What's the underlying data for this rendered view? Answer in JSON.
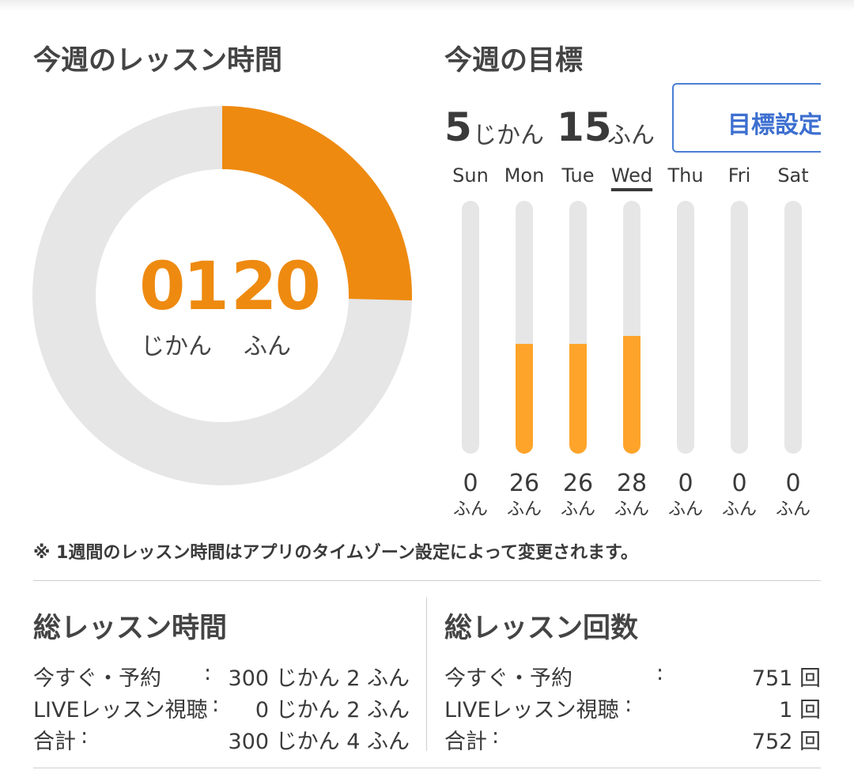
{
  "weekly": {
    "title": "今週のレッスン時間",
    "hours": "01",
    "minutes": "20",
    "hours_unit": "じかん",
    "minutes_unit": "ふん",
    "progress_fraction": 0.254,
    "accent_color": "#ee8a10",
    "track_color": "#e6e6e6"
  },
  "goal": {
    "title": "今週の目標",
    "hours": "5",
    "hours_unit": "じかん",
    "minutes": "15",
    "minutes_unit": "ふん",
    "button_label": "目標設定",
    "max_minutes": 60,
    "days": [
      {
        "label": "Sun",
        "value": "0",
        "unit": "ふん",
        "minutes": 0,
        "active": false
      },
      {
        "label": "Mon",
        "value": "26",
        "unit": "ふん",
        "minutes": 26,
        "active": false
      },
      {
        "label": "Tue",
        "value": "26",
        "unit": "ふん",
        "minutes": 26,
        "active": false
      },
      {
        "label": "Wed",
        "value": "28",
        "unit": "ふん",
        "minutes": 28,
        "active": true
      },
      {
        "label": "Thu",
        "value": "0",
        "unit": "ふん",
        "minutes": 0,
        "active": false
      },
      {
        "label": "Fri",
        "value": "0",
        "unit": "ふん",
        "minutes": 0,
        "active": false
      },
      {
        "label": "Sat",
        "value": "0",
        "unit": "ふん",
        "minutes": 0,
        "active": false
      }
    ]
  },
  "note": "※ 1週間のレッスン時間はアプリのタイムゾーン設定によって変更されます。",
  "total_time": {
    "title": "総レッスン時間",
    "rows": [
      {
        "label": "今すぐ・予約",
        "colon": ":",
        "value": "300 じかん  2 ふん"
      },
      {
        "label": "LIVEレッスン視聴",
        "colon": ":",
        "value": "0 じかん  2 ふん"
      },
      {
        "label": "合計",
        "colon": ":",
        "value": "300 じかん  4 ふん"
      }
    ]
  },
  "total_count": {
    "title": "総レッスン回数",
    "rows": [
      {
        "label": "今すぐ・予約",
        "colon": ":",
        "value": "751 回"
      },
      {
        "label": "LIVEレッスン視聴",
        "colon": ":",
        "value": "1 回"
      },
      {
        "label": "合計",
        "colon": ":",
        "value": "752 回"
      }
    ]
  }
}
